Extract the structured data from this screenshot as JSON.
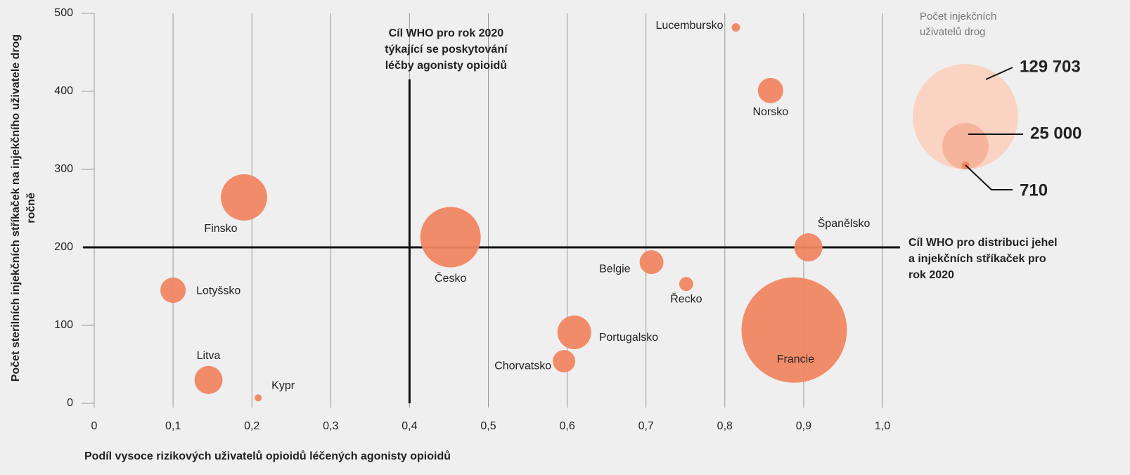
{
  "chart_data": {
    "type": "bubble",
    "xlabel": "Podíl vysoce rizikových uživatelů opioidů léčených agonisty opioidů",
    "ylabel": [
      "Počet sterilních injekčních stříkaček na injekčního uživatele drog",
      "ročně"
    ],
    "point_labels": [
      "Lucembursko",
      "Norsko",
      "Finsko",
      "Česko",
      "Španělsko",
      "Belgie",
      "Řecko",
      "Lotyšsko",
      "Portugalsko",
      "Francie",
      "Chorvatsko",
      "Litva",
      "Kypr"
    ],
    "x": [
      0.814,
      0.858,
      0.19,
      0.452,
      0.906,
      0.707,
      0.751,
      0.1,
      0.609,
      0.888,
      0.596,
      0.145,
      0.208
    ],
    "values": [
      482,
      401,
      264,
      213,
      200,
      181,
      153,
      145,
      91,
      94,
      54,
      30,
      7
    ],
    "sizes": [
      830,
      7500,
      25000,
      42600,
      9200,
      6650,
      2300,
      7500,
      13300,
      129703,
      5900,
      9200,
      580
    ],
    "color": "#f08662",
    "xlim": [
      0,
      1.0
    ],
    "xticks": [
      0,
      {
        "value": 0.1,
        "label": "0,1"
      },
      {
        "value": 0.2,
        "label": "0,2"
      },
      {
        "value": 0.3,
        "label": "0,3"
      },
      {
        "value": 0.4,
        "label": "0,4"
      },
      {
        "value": 0.5,
        "label": "0,5"
      },
      {
        "value": 0.6,
        "label": "0,6"
      },
      {
        "value": 0.7,
        "label": "0,7"
      },
      {
        "value": 0.8,
        "label": "0,8"
      },
      {
        "value": 0.9,
        "label": "0,9"
      },
      {
        "value": 1.0,
        "label": "1,0"
      }
    ],
    "ylim": [
      0,
      500
    ],
    "yticks": [
      0,
      100,
      200,
      300,
      400,
      500
    ],
    "grid": true,
    "reference_lines": [
      {
        "axis": "x",
        "value": 0.4,
        "label": [
          "Cíl WHO pro rok 2020",
          "týkající se poskytování",
          "léčby agonisty opioidů"
        ]
      },
      {
        "axis": "y",
        "value": 200,
        "label": [
          "Cíl WHO pro distribuci jehel",
          "a injekčních stříkaček pro",
          "rok 2020"
        ]
      }
    ],
    "size_legend_title": [
      "Počet injekčních",
      "uživatelů drog"
    ],
    "size_legend": [
      {
        "value": 129703,
        "label": "129 703"
      },
      {
        "value": 25000,
        "label": "25 000"
      },
      {
        "value": 710,
        "label": "710"
      }
    ],
    "size_legend_colors": [
      "#fbd3c2",
      "#f5b49b",
      "#f08662"
    ]
  }
}
